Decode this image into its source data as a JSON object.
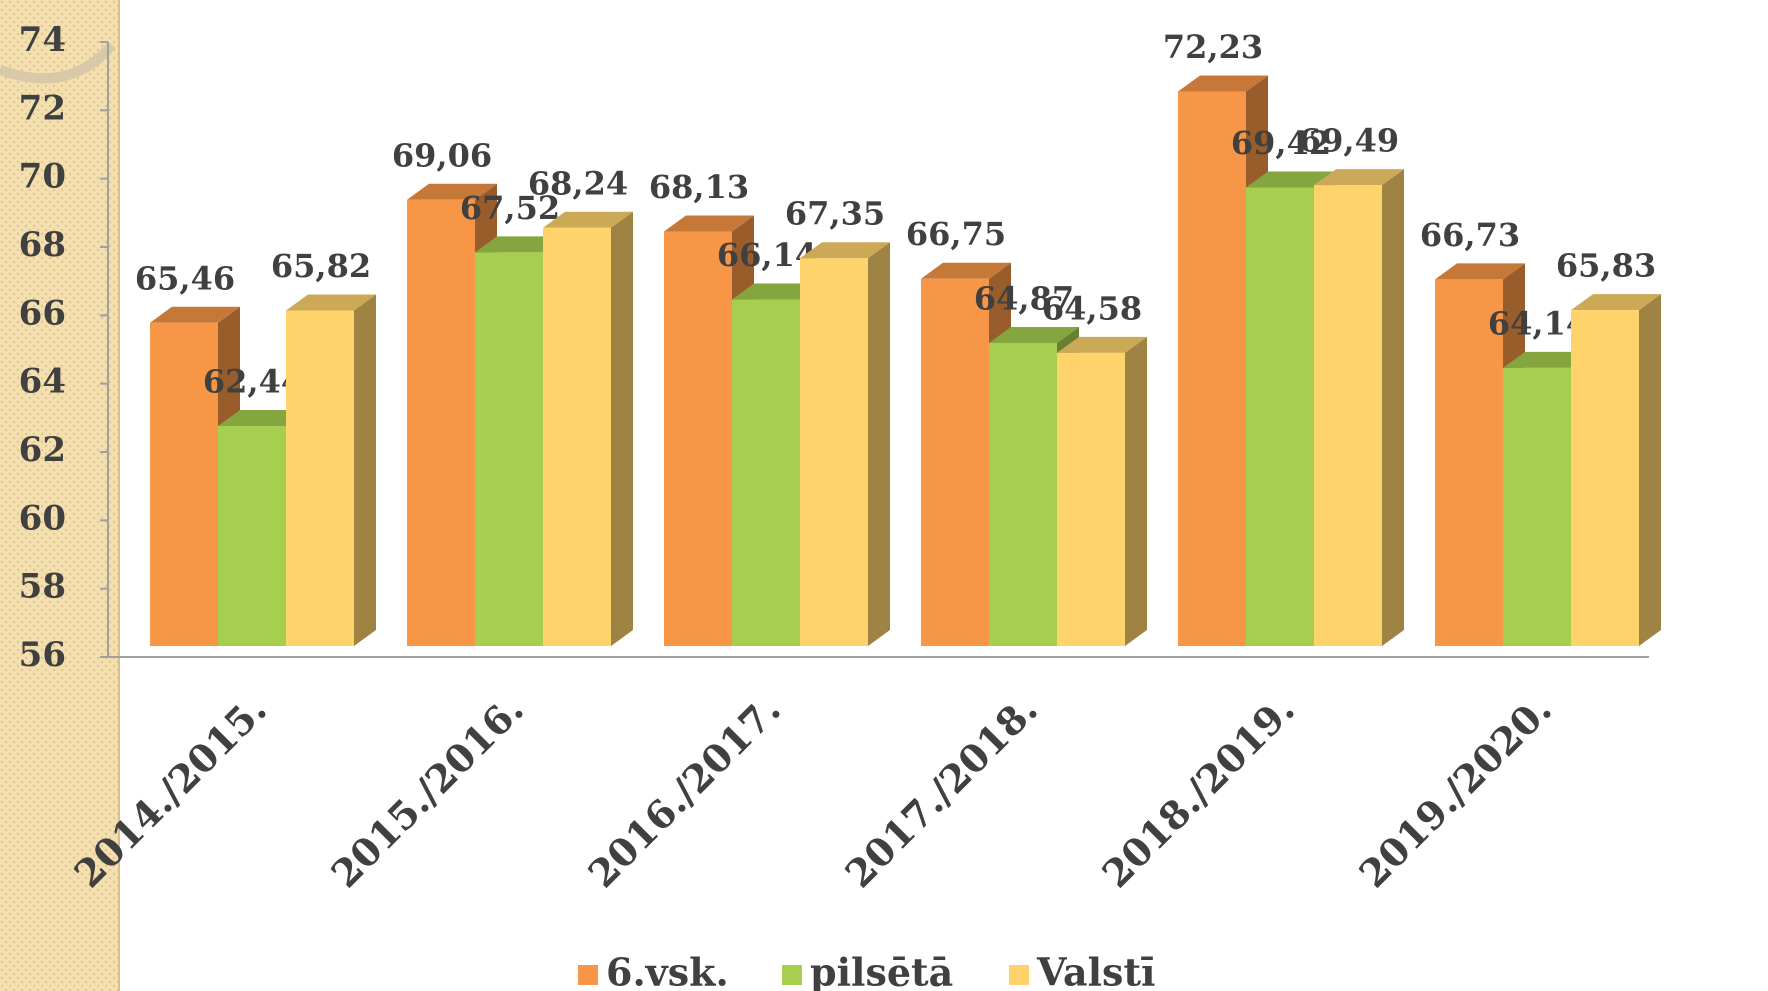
{
  "chart_data": {
    "type": "bar3d",
    "categories": [
      "2014./2015.",
      "2015./2016.",
      "2016./2017.",
      "2017./2018.",
      "2018./2019.",
      "2019./2020."
    ],
    "series": [
      {
        "name": "6.vsk.",
        "color": "#f79646",
        "values": [
          65.46,
          69.06,
          68.13,
          66.75,
          72.23,
          66.73
        ],
        "value_labels": [
          "65,46",
          "69,06",
          "68,13",
          "66,75",
          "72,23",
          "66,73"
        ]
      },
      {
        "name": "pilsētā",
        "color": "#a6cf4f",
        "values": [
          62.44,
          67.52,
          66.14,
          64.87,
          69.42,
          64.14
        ],
        "value_labels": [
          "62,44",
          "67,52",
          "66,14",
          "64,87",
          "69,42",
          "64,14"
        ]
      },
      {
        "name": "Valstī",
        "color": "#ffd36b",
        "values": [
          65.82,
          68.24,
          67.35,
          64.58,
          69.49,
          65.83
        ],
        "value_labels": [
          "65,82",
          "68,24",
          "67,35",
          "64,58",
          "69,49",
          "65,83"
        ]
      }
    ],
    "ylim": [
      56,
      74
    ],
    "yticks": [
      56,
      58,
      60,
      62,
      64,
      66,
      68,
      70,
      72,
      74
    ],
    "legend": "bottom"
  }
}
